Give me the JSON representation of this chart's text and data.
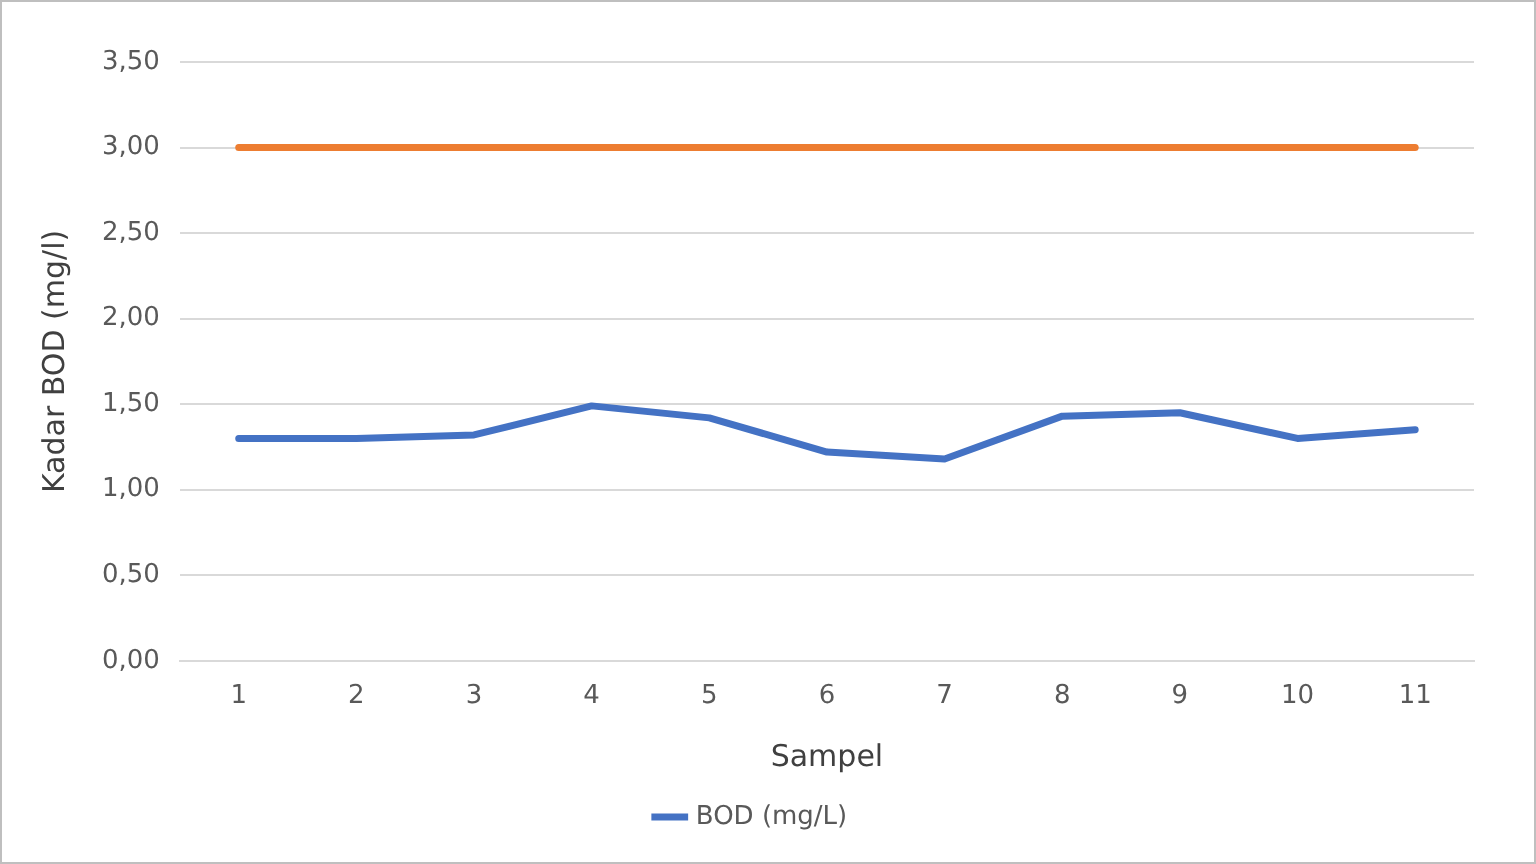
{
  "chart_data": {
    "type": "line",
    "xlabel": "Sampel",
    "ylabel": "Kadar BOD (mg/l)",
    "categories": [
      "1",
      "2",
      "3",
      "4",
      "5",
      "6",
      "7",
      "8",
      "9",
      "10",
      "11"
    ],
    "series": [
      {
        "name": "BOD (mg/L)",
        "color": "#4472c4",
        "values": [
          1.3,
          1.3,
          1.32,
          1.49,
          1.42,
          1.22,
          1.18,
          1.43,
          1.45,
          1.3,
          1.35
        ]
      },
      {
        "color": "#ed7d31",
        "values": [
          3.0,
          3.0,
          3.0,
          3.0,
          3.0,
          3.0,
          3.0,
          3.0,
          3.0,
          3.0,
          3.0
        ]
      }
    ],
    "ylim": [
      0,
      3.5
    ],
    "yticks": [
      {
        "value": 0,
        "label": "0,00"
      },
      {
        "value": 0.5,
        "label": "0,50"
      },
      {
        "value": 1,
        "label": "1,00"
      },
      {
        "value": 1.5,
        "label": "1,50"
      },
      {
        "value": 2,
        "label": "2,00"
      },
      {
        "value": 2.5,
        "label": "2,50"
      },
      {
        "value": 3,
        "label": "3,00"
      },
      {
        "value": 3.5,
        "label": "3,50"
      }
    ],
    "grid": "y",
    "legend": "bottom",
    "marker": "none",
    "line_style": "solid"
  }
}
